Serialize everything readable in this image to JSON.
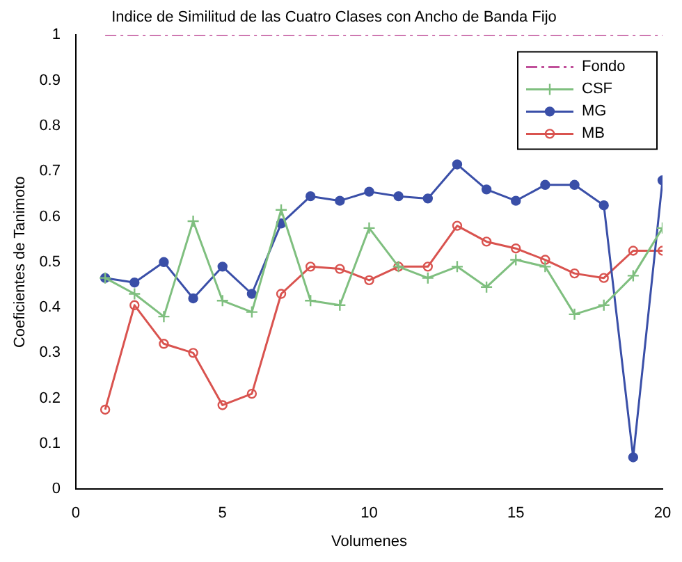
{
  "chart_data": {
    "type": "line",
    "title": "Indice de Similitud de las Cuatro Clases con Ancho de Banda Fijo",
    "xlabel": "Volumenes",
    "ylabel": "Coeficientes de Tanimoto",
    "x": [
      1,
      2,
      3,
      4,
      5,
      6,
      7,
      8,
      9,
      10,
      11,
      12,
      13,
      14,
      15,
      16,
      17,
      18,
      19,
      20
    ],
    "series": [
      {
        "name": "Fondo",
        "color": "#c0509a",
        "line_style": "dashed",
        "marker": "none",
        "values": [
          1,
          1,
          1,
          1,
          1,
          1,
          1,
          1,
          1,
          1,
          1,
          1,
          1,
          1,
          1,
          1,
          1,
          1,
          1,
          1
        ]
      },
      {
        "name": "CSF",
        "color": "#7fbf7f",
        "line_style": "solid",
        "marker": "cross",
        "values": [
          0.465,
          0.43,
          0.38,
          0.59,
          0.415,
          0.39,
          0.615,
          0.415,
          0.405,
          0.575,
          0.49,
          0.465,
          0.49,
          0.445,
          0.505,
          0.49,
          0.385,
          0.405,
          0.47,
          0.575
        ]
      },
      {
        "name": "MG",
        "color": "#3a4fa8",
        "line_style": "solid",
        "marker": "circle",
        "values": [
          0.465,
          0.455,
          0.5,
          0.42,
          0.49,
          0.43,
          0.585,
          0.645,
          0.635,
          0.655,
          0.645,
          0.64,
          0.715,
          0.66,
          0.635,
          0.67,
          0.67,
          0.625,
          0.07,
          0.68
        ]
      },
      {
        "name": "MB",
        "color": "#d9534f",
        "line_style": "solid",
        "marker": "circle",
        "values": [
          0.175,
          0.405,
          0.32,
          0.3,
          0.185,
          0.21,
          0.43,
          0.49,
          0.485,
          0.46,
          0.49,
          0.49,
          0.58,
          0.545,
          0.53,
          0.505,
          0.475,
          0.465,
          0.525,
          0.525
        ]
      }
    ],
    "xlim": [
      0,
      20
    ],
    "xticks": [
      0,
      5,
      10,
      15,
      20
    ],
    "ylim": [
      0,
      1
    ],
    "yticks": [
      0,
      0.1,
      0.2,
      0.3,
      0.4,
      0.5,
      0.6,
      0.7,
      0.8,
      0.9,
      1
    ],
    "legend": "top right",
    "grid": false
  }
}
